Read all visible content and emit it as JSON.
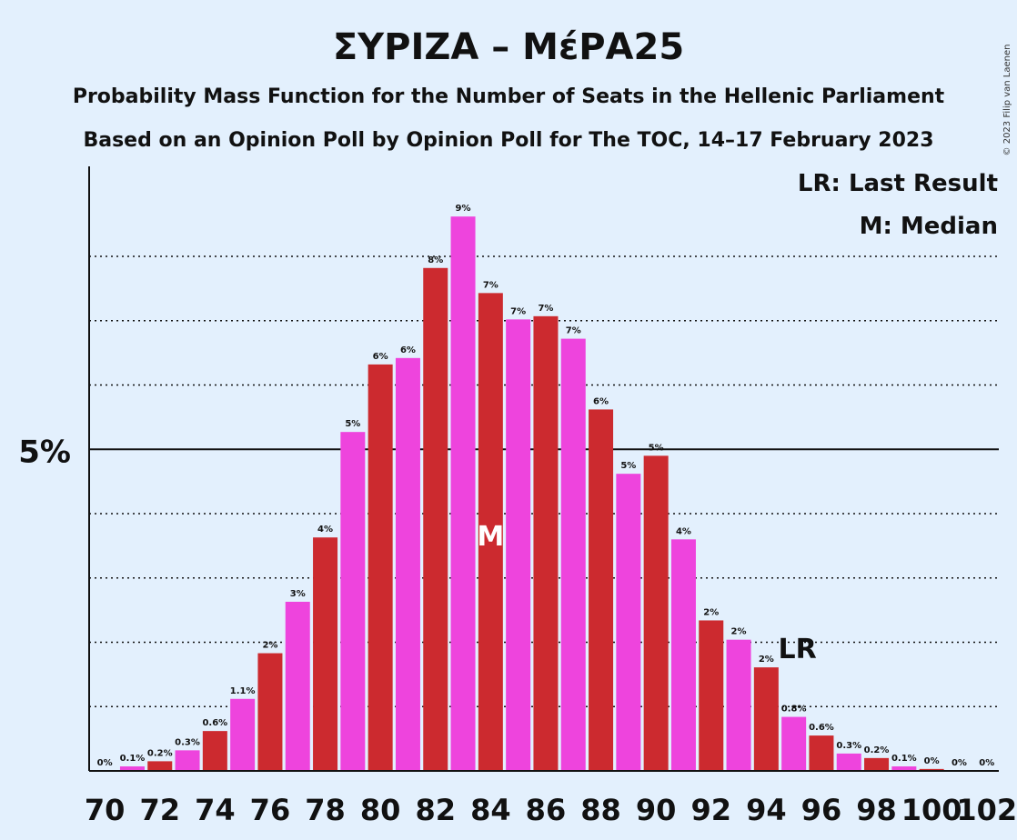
{
  "chart_data": {
    "type": "bar",
    "title": "ΣΥΡΙΖΑ – ΜέΡΑ25",
    "subtitle": "Probability Mass Function for the Number of Seats in the Hellenic Parliament",
    "subtitle2": "Based on an Opinion Poll by Opinion Poll for The TOC, 14–17 February 2023",
    "credit": "© 2023 Filip van Laenen",
    "legend": [
      "LR: Last Result",
      "M: Median"
    ],
    "legend_placement": "top-right",
    "ytick_label": "5%",
    "ytick_value": 5,
    "ylim": [
      0,
      9.4
    ],
    "median_seat": 84,
    "median_marker": "M",
    "last_result_seat": 95,
    "last_result_marker": "LR",
    "colors": {
      "odd": "#ee44dd",
      "even": "#cc2a2f",
      "background": "#e3f0fd"
    },
    "x_tick_labels": [
      "70",
      "72",
      "74",
      "76",
      "78",
      "80",
      "82",
      "84",
      "86",
      "88",
      "90",
      "92",
      "94",
      "96",
      "98",
      "100",
      "102"
    ],
    "bars": [
      {
        "seat": 70,
        "value": 0.0,
        "label": "0%"
      },
      {
        "seat": 71,
        "value": 0.07,
        "label": "0.1%"
      },
      {
        "seat": 72,
        "value": 0.15,
        "label": "0.2%"
      },
      {
        "seat": 73,
        "value": 0.32,
        "label": "0.3%"
      },
      {
        "seat": 74,
        "value": 0.62,
        "label": "0.6%"
      },
      {
        "seat": 75,
        "value": 1.12,
        "label": "1.1%"
      },
      {
        "seat": 76,
        "value": 1.83,
        "label": "2%"
      },
      {
        "seat": 77,
        "value": 2.63,
        "label": "3%"
      },
      {
        "seat": 78,
        "value": 3.63,
        "label": "4%"
      },
      {
        "seat": 79,
        "value": 5.27,
        "label": "5%"
      },
      {
        "seat": 80,
        "value": 6.32,
        "label": "6%"
      },
      {
        "seat": 81,
        "value": 6.42,
        "label": "6%"
      },
      {
        "seat": 82,
        "value": 7.82,
        "label": "8%"
      },
      {
        "seat": 83,
        "value": 8.62,
        "label": "9%"
      },
      {
        "seat": 84,
        "value": 7.43,
        "label": "7%"
      },
      {
        "seat": 85,
        "value": 7.02,
        "label": "7%"
      },
      {
        "seat": 86,
        "value": 7.07,
        "label": "7%"
      },
      {
        "seat": 87,
        "value": 6.72,
        "label": "7%"
      },
      {
        "seat": 88,
        "value": 5.62,
        "label": "6%"
      },
      {
        "seat": 89,
        "value": 4.62,
        "label": "5%"
      },
      {
        "seat": 90,
        "value": 4.9,
        "label": "5%"
      },
      {
        "seat": 91,
        "value": 3.6,
        "label": "4%"
      },
      {
        "seat": 92,
        "value": 2.34,
        "label": "2%"
      },
      {
        "seat": 93,
        "value": 2.04,
        "label": "2%"
      },
      {
        "seat": 94,
        "value": 1.61,
        "label": "2%"
      },
      {
        "seat": 95,
        "value": 0.84,
        "label": "0.8%"
      },
      {
        "seat": 96,
        "value": 0.55,
        "label": "0.6%"
      },
      {
        "seat": 97,
        "value": 0.27,
        "label": "0.3%"
      },
      {
        "seat": 98,
        "value": 0.2,
        "label": "0.2%"
      },
      {
        "seat": 99,
        "value": 0.07,
        "label": "0.1%"
      },
      {
        "seat": 100,
        "value": 0.03,
        "label": "0%"
      },
      {
        "seat": 101,
        "value": 0.0,
        "label": "0%"
      },
      {
        "seat": 102,
        "value": 0.0,
        "label": "0%"
      }
    ]
  }
}
